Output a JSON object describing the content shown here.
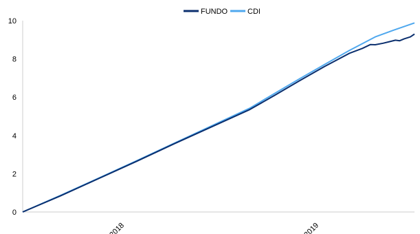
{
  "chart_data": {
    "type": "line",
    "x_axis_type": "date",
    "x_ticks": [
      "2018",
      "2019"
    ],
    "ylim": [
      0,
      10
    ],
    "y_ticks": [
      0,
      2,
      4,
      6,
      8,
      10
    ],
    "grid": false,
    "legend_position": "top-center",
    "series": [
      {
        "name": "FUNDO",
        "color": "#0b2f6e",
        "points": [
          [
            "2017-05-01",
            0
          ],
          [
            "2017-08-01",
            0.85
          ],
          [
            "2017-11-01",
            1.75
          ],
          [
            "2018-02-01",
            2.65
          ],
          [
            "2018-05-01",
            3.55
          ],
          [
            "2018-08-01",
            4.45
          ],
          [
            "2018-11-01",
            5.35
          ],
          [
            "2019-01-01",
            6.1
          ],
          [
            "2019-03-01",
            6.85
          ],
          [
            "2019-05-01",
            7.6
          ],
          [
            "2019-07-01",
            8.3
          ],
          [
            "2019-08-01",
            8.55
          ],
          [
            "2019-08-20",
            8.75
          ],
          [
            "2019-09-01",
            8.74
          ],
          [
            "2019-09-20",
            8.82
          ],
          [
            "2019-10-05",
            8.9
          ],
          [
            "2019-10-20",
            8.98
          ],
          [
            "2019-10-30",
            8.95
          ],
          [
            "2019-11-10",
            9.05
          ],
          [
            "2019-11-25",
            9.15
          ],
          [
            "2019-12-05",
            9.3
          ]
        ]
      },
      {
        "name": "CDI",
        "color": "#4fa8ee",
        "points": [
          [
            "2017-05-01",
            0
          ],
          [
            "2017-08-01",
            0.87
          ],
          [
            "2017-11-01",
            1.77
          ],
          [
            "2018-02-01",
            2.68
          ],
          [
            "2018-05-01",
            3.58
          ],
          [
            "2018-08-01",
            4.5
          ],
          [
            "2018-11-01",
            5.42
          ],
          [
            "2019-01-01",
            6.2
          ],
          [
            "2019-03-01",
            6.95
          ],
          [
            "2019-05-01",
            7.7
          ],
          [
            "2019-07-01",
            8.45
          ],
          [
            "2019-09-01",
            9.15
          ],
          [
            "2019-10-15",
            9.5
          ],
          [
            "2019-12-05",
            9.88
          ]
        ]
      }
    ]
  }
}
